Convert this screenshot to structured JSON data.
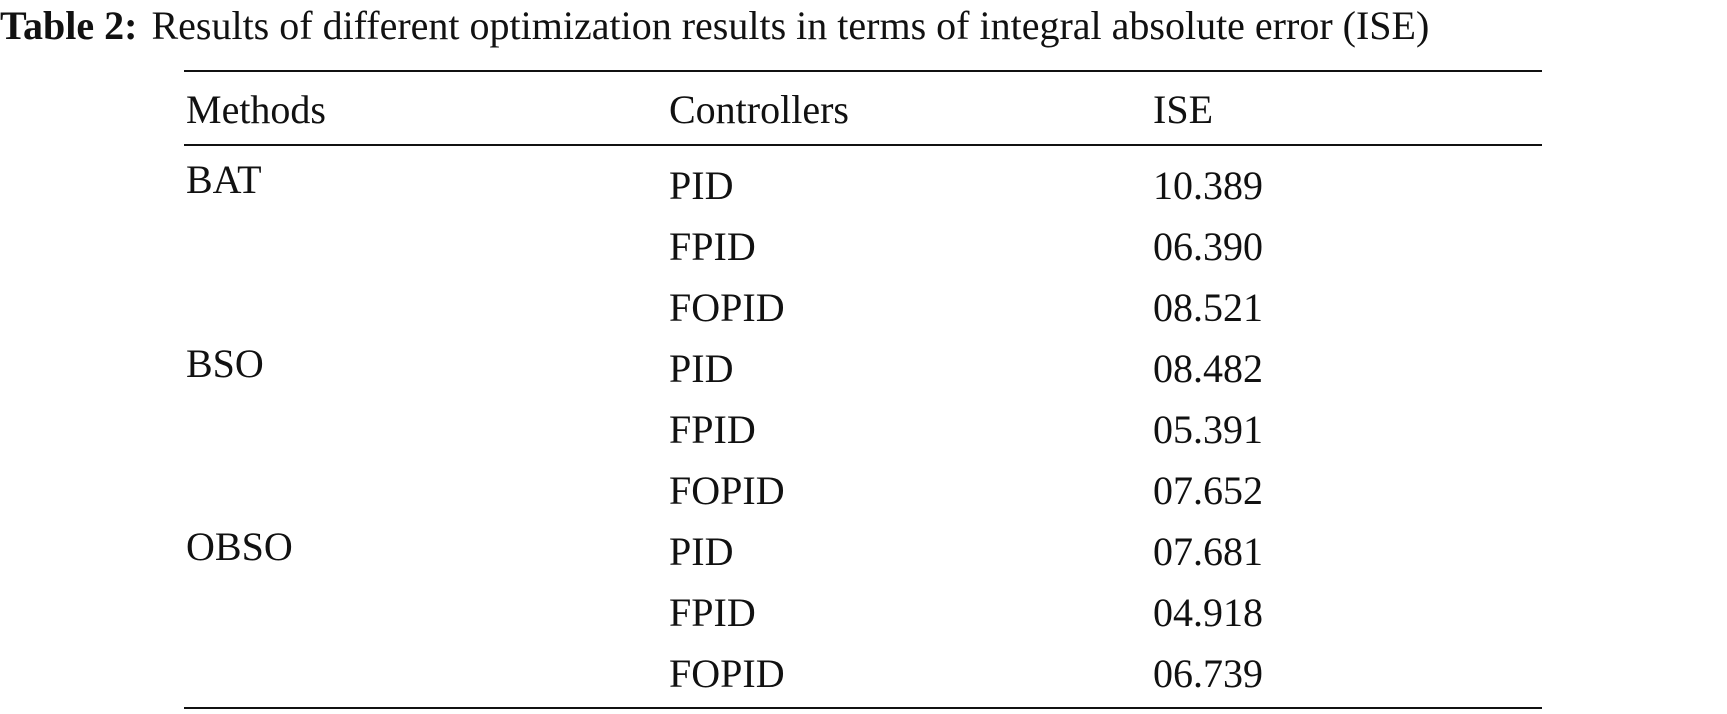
{
  "caption": {
    "label": "Table 2:",
    "text": "Results of different optimization results in terms of integral absolute error (ISE)"
  },
  "table": {
    "headers": {
      "methods": "Methods",
      "controllers": "Controllers",
      "ise": "ISE"
    },
    "rows": [
      {
        "method": "BAT",
        "controller": "PID",
        "ise": "10.389"
      },
      {
        "method": "",
        "controller": "FPID",
        "ise": "06.390"
      },
      {
        "method": "",
        "controller": "FOPID",
        "ise": "08.521"
      },
      {
        "method": "BSO",
        "controller": "PID",
        "ise": "08.482"
      },
      {
        "method": "",
        "controller": "FPID",
        "ise": "05.391"
      },
      {
        "method": "",
        "controller": "FOPID",
        "ise": "07.652"
      },
      {
        "method": "OBSO",
        "controller": "PID",
        "ise": "07.681"
      },
      {
        "method": "",
        "controller": "FPID",
        "ise": "04.918"
      },
      {
        "method": "",
        "controller": "FOPID",
        "ise": "06.739"
      }
    ]
  }
}
